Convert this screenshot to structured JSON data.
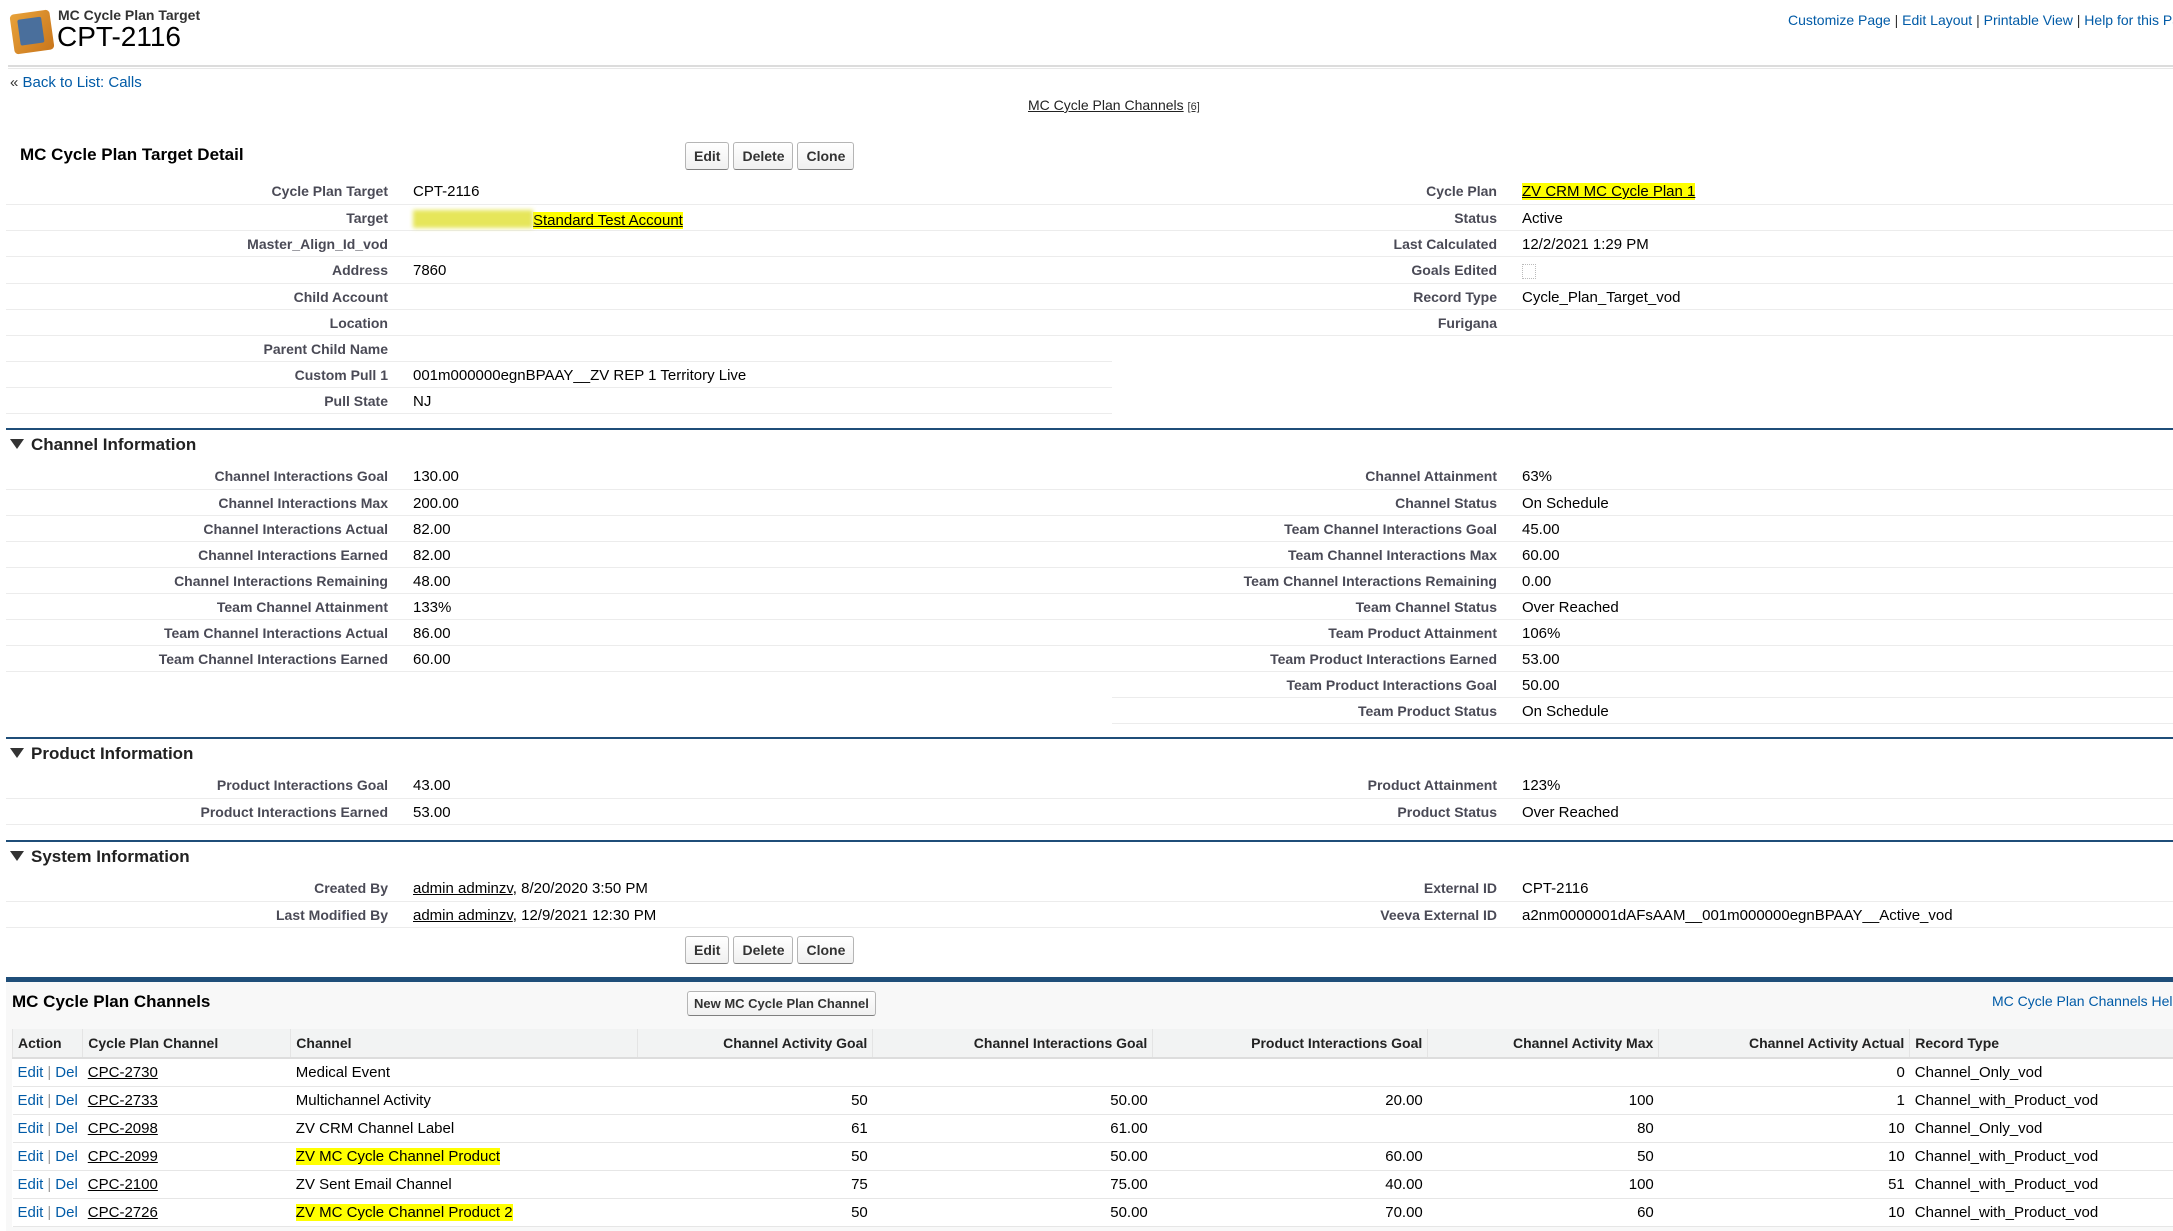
{
  "header": {
    "object_type": "MC Cycle Plan Target",
    "record_name": "CPT-2116",
    "links": [
      "Customize Page",
      "Edit Layout",
      "Printable View",
      "Help for this Page"
    ]
  },
  "back_link": {
    "prefix": "«",
    "label": "Back to List: Calls"
  },
  "related_link": {
    "label": "MC Cycle Plan Channels",
    "count": "[6]"
  },
  "detail": {
    "title": "MC Cycle Plan Target Detail",
    "buttons": [
      "Edit",
      "Delete",
      "Clone"
    ],
    "rows": [
      {
        "l": "Cycle Plan Target",
        "v": "CPT-2116",
        "l2": "Cycle Plan",
        "v2": "ZV CRM MC Cycle Plan 1",
        "v2link": true,
        "v2hl": true
      },
      {
        "l": "Target",
        "v": "Standard Test Account",
        "vlink": true,
        "vhl": true,
        "l2": "Status",
        "v2": "Active"
      },
      {
        "l": "Master_Align_Id_vod",
        "v": "",
        "l2": "Last Calculated",
        "v2": "12/2/2021 1:29 PM"
      },
      {
        "l": "Address",
        "v": "7860",
        "l2": "Goals Edited",
        "v2check": false
      },
      {
        "l": "Child Account",
        "v": "",
        "l2": "Record Type",
        "v2": "Cycle_Plan_Target_vod"
      },
      {
        "l": "Location",
        "v": "",
        "l2": "Furigana",
        "v2": ""
      },
      {
        "l": "Parent Child Name",
        "v": ""
      },
      {
        "l": "Custom Pull 1",
        "v": "001m000000egnBPAAY__ZV REP 1 Territory Live"
      },
      {
        "l": "Pull State",
        "v": "NJ"
      }
    ]
  },
  "channel_info": {
    "title": "Channel Information",
    "rows": [
      {
        "l": "Channel Interactions Goal",
        "v": "130.00",
        "l2": "Channel Attainment",
        "v2": "63%"
      },
      {
        "l": "Channel Interactions Max",
        "v": "200.00",
        "l2": "Channel Status",
        "v2": "On Schedule"
      },
      {
        "l": "Channel Interactions Actual",
        "v": "82.00",
        "l2": "Team Channel Interactions Goal",
        "v2": "45.00"
      },
      {
        "l": "Channel Interactions Earned",
        "v": "82.00",
        "l2": "Team Channel Interactions Max",
        "v2": "60.00"
      },
      {
        "l": "Channel Interactions Remaining",
        "v": "48.00",
        "l2": "Team Channel Interactions Remaining",
        "v2": "0.00"
      },
      {
        "l": "Team Channel Attainment",
        "v": "133%",
        "l2": "Team Channel Status",
        "v2": "Over Reached"
      },
      {
        "l": "Team Channel Interactions Actual",
        "v": "86.00",
        "l2": "Team Product Attainment",
        "v2": "106%"
      },
      {
        "l": "Team Channel Interactions Earned",
        "v": "60.00",
        "l2": "Team Product Interactions Earned",
        "v2": "53.00"
      },
      {
        "l2": "Team Product Interactions Goal",
        "v2": "50.00"
      },
      {
        "l2": "Team Product Status",
        "v2": "On Schedule"
      }
    ]
  },
  "product_info": {
    "title": "Product Information",
    "rows": [
      {
        "l": "Product Interactions Goal",
        "v": "43.00",
        "l2": "Product Attainment",
        "v2": "123%"
      },
      {
        "l": "Product Interactions Earned",
        "v": "53.00",
        "l2": "Product Status",
        "v2": "Over Reached"
      }
    ]
  },
  "system_info": {
    "title": "System Information",
    "rows": [
      {
        "l": "Created By",
        "v": "admin adminzv",
        "vsuffix": ", 8/20/2020 3:50 PM",
        "vlink": true,
        "l2": "External ID",
        "v2": "CPT-2116"
      },
      {
        "l": "Last Modified By",
        "v": "admin adminzv",
        "vsuffix": ", 12/9/2021 12:30 PM",
        "vlink": true,
        "l2": "Veeva External ID",
        "v2": "a2nm0000001dAFsAAM__001m000000egnBPAAY__Active_vod"
      }
    ]
  },
  "related_list": {
    "title": "MC Cycle Plan Channels",
    "new_button": "New MC Cycle Plan Channel",
    "help_link": "MC Cycle Plan Channels Help",
    "columns": [
      "Action",
      "Cycle Plan Channel",
      "Channel",
      "Channel Activity Goal",
      "Channel Interactions Goal",
      "Product Interactions Goal",
      "Channel Activity Max",
      "Channel Activity Actual",
      "Record Type"
    ],
    "action_edit": "Edit",
    "action_sep": "|",
    "action_del": "Del",
    "rows": [
      {
        "id": "CPC-2730",
        "channel": "Medical Event",
        "activity_goal": "",
        "interactions_goal": "",
        "product_goal": "",
        "activity_max": "",
        "activity_actual": "0",
        "record_type": "Channel_Only_vod",
        "highlight": false
      },
      {
        "id": "CPC-2733",
        "channel": "Multichannel Activity",
        "activity_goal": "50",
        "interactions_goal": "50.00",
        "product_goal": "20.00",
        "activity_max": "100",
        "activity_actual": "1",
        "record_type": "Channel_with_Product_vod",
        "highlight": false
      },
      {
        "id": "CPC-2098",
        "channel": "ZV CRM Channel Label",
        "activity_goal": "61",
        "interactions_goal": "61.00",
        "product_goal": "",
        "activity_max": "80",
        "activity_actual": "10",
        "record_type": "Channel_Only_vod",
        "highlight": false
      },
      {
        "id": "CPC-2099",
        "channel": "ZV MC Cycle Channel Product",
        "activity_goal": "50",
        "interactions_goal": "50.00",
        "product_goal": "60.00",
        "activity_max": "50",
        "activity_actual": "10",
        "record_type": "Channel_with_Product_vod",
        "highlight": true
      },
      {
        "id": "CPC-2100",
        "channel": "ZV Sent Email Channel",
        "activity_goal": "75",
        "interactions_goal": "75.00",
        "product_goal": "40.00",
        "activity_max": "100",
        "activity_actual": "51",
        "record_type": "Channel_with_Product_vod",
        "highlight": false
      },
      {
        "id": "CPC-2726",
        "channel": "ZV MC Cycle Channel Product 2",
        "activity_goal": "50",
        "interactions_goal": "50.00",
        "product_goal": "70.00",
        "activity_max": "60",
        "activity_actual": "10",
        "record_type": "Channel_with_Product_vod",
        "highlight": true
      }
    ]
  },
  "colors": {
    "link": "#015ba7",
    "section_bar": "#1f4e79",
    "highlight": "#ffff00"
  }
}
